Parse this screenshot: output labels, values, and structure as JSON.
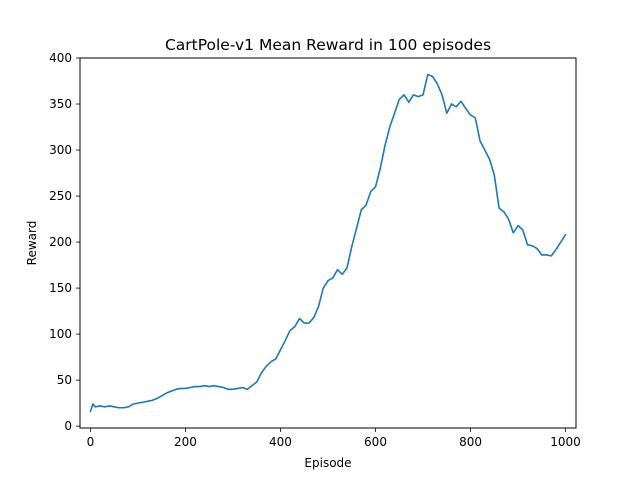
{
  "chart_data": {
    "type": "line",
    "title": "CartPole-v1 Mean Reward in 100 episodes",
    "xlabel": "Episode",
    "ylabel": "Reward",
    "xlim": [
      -22,
      1022
    ],
    "ylim": [
      -2,
      400
    ],
    "xticks": [
      0,
      200,
      400,
      600,
      800,
      1000
    ],
    "yticks": [
      0,
      50,
      100,
      150,
      200,
      250,
      300,
      350,
      400
    ],
    "grid": false,
    "legend": "none",
    "series": [
      {
        "color": "#1f77b4",
        "x": [
          0,
          5,
          10,
          20,
          30,
          40,
          50,
          60,
          70,
          80,
          90,
          100,
          110,
          120,
          130,
          140,
          150,
          160,
          170,
          180,
          190,
          200,
          210,
          220,
          230,
          240,
          250,
          260,
          270,
          280,
          290,
          300,
          310,
          320,
          330,
          340,
          350,
          360,
          370,
          380,
          390,
          400,
          410,
          420,
          430,
          440,
          450,
          460,
          470,
          480,
          490,
          500,
          510,
          520,
          530,
          540,
          550,
          560,
          570,
          580,
          590,
          600,
          610,
          620,
          630,
          640,
          650,
          660,
          670,
          680,
          690,
          700,
          710,
          720,
          730,
          740,
          750,
          760,
          770,
          780,
          790,
          800,
          810,
          820,
          830,
          840,
          850,
          860,
          870,
          880,
          890,
          900,
          910,
          920,
          930,
          940,
          950,
          960,
          970,
          980,
          990,
          1000
        ],
        "y": [
          16,
          24,
          21,
          22,
          21,
          22,
          21,
          20,
          20,
          21,
          24,
          25,
          26,
          27,
          28,
          30,
          33,
          36,
          38,
          40,
          41,
          41,
          42,
          43,
          43,
          44,
          43,
          44,
          43,
          42,
          40,
          40,
          41,
          42,
          40,
          44,
          48,
          58,
          65,
          70,
          73,
          83,
          93,
          104,
          108,
          117,
          112,
          112,
          118,
          130,
          150,
          158,
          161,
          170,
          165,
          172,
          195,
          215,
          235,
          240,
          255,
          260,
          280,
          305,
          325,
          340,
          355,
          360,
          352,
          360,
          358,
          360,
          382,
          380,
          372,
          360,
          340,
          350,
          347,
          353,
          345,
          338,
          335,
          310,
          300,
          290,
          273,
          237,
          233,
          225,
          210,
          218,
          213,
          197,
          196,
          193,
          186,
          186,
          185,
          192,
          200,
          208
        ]
      }
    ]
  }
}
